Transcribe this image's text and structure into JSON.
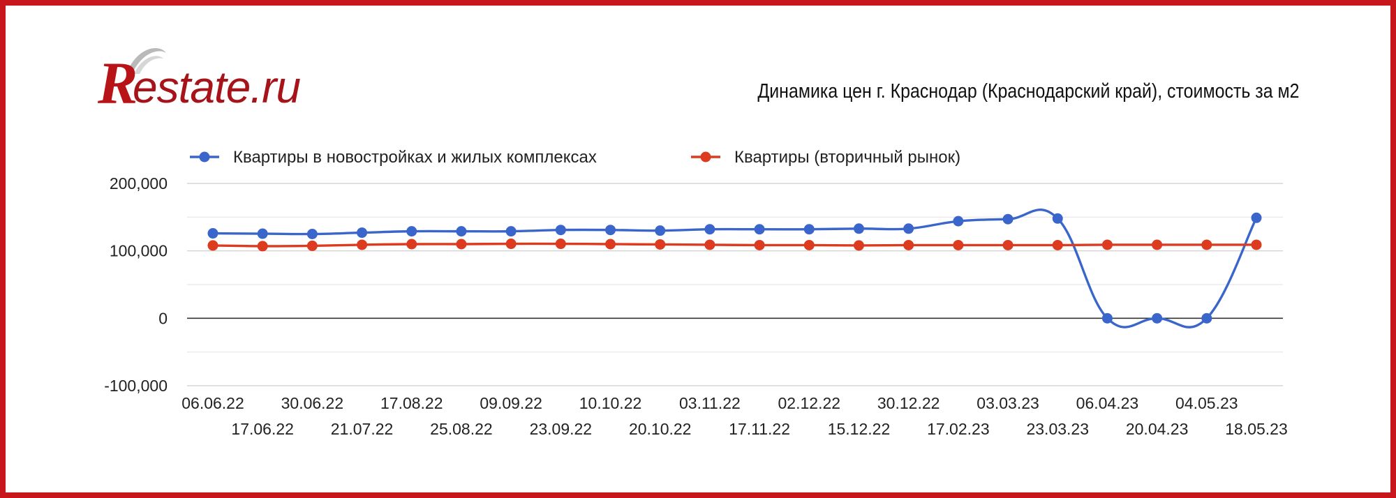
{
  "brand": {
    "r": "R",
    "rest": "estate.ru",
    "color": "#b81418"
  },
  "chart_data": {
    "type": "line",
    "title": "Динамика цен г. Краснодар (Краснодарский край), стоимость за м2",
    "xlabel": "",
    "ylabel": "",
    "ylim": [
      -100000,
      200000
    ],
    "yticks": [
      -100000,
      0,
      100000,
      200000
    ],
    "ytick_labels": [
      "-100,000",
      "0",
      "100,000",
      "200,000"
    ],
    "grid": true,
    "legend_position": "top-left",
    "categories": [
      "06.06.22",
      "17.06.22",
      "30.06.22",
      "21.07.22",
      "17.08.22",
      "25.08.22",
      "09.09.22",
      "23.09.22",
      "10.10.22",
      "20.10.22",
      "03.11.22",
      "17.11.22",
      "02.12.22",
      "15.12.22",
      "30.12.22",
      "17.02.23",
      "03.03.23",
      "23.03.23",
      "06.04.23",
      "20.04.23",
      "04.05.23",
      "18.05.23"
    ],
    "series": [
      {
        "name": "Квартиры в новостройках и жилых комплексах",
        "color": "#3a66cc",
        "values": [
          126000,
          125500,
          125000,
          127000,
          129000,
          129000,
          129000,
          131000,
          131000,
          130000,
          132000,
          132000,
          132000,
          133000,
          133000,
          144000,
          147000,
          148000,
          0,
          0,
          0,
          149000
        ]
      },
      {
        "name": "Квартиры (вторичный рынок)",
        "color": "#dc3b1f",
        "values": [
          108000,
          107000,
          107500,
          109000,
          110000,
          110000,
          110500,
          110500,
          110000,
          109500,
          109000,
          108500,
          108500,
          108000,
          108500,
          108500,
          108500,
          108500,
          109000,
          109000,
          109000,
          109000
        ]
      }
    ]
  }
}
